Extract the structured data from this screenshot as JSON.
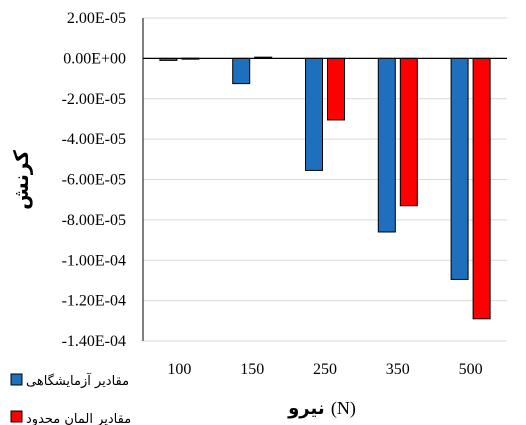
{
  "chart_data": {
    "type": "bar",
    "categories": [
      "100",
      "150",
      "250",
      "350",
      "500"
    ],
    "series": [
      {
        "name": "مقادیر آزمایشگاهی",
        "color": "#1f6fbf",
        "values": [
          -1e-06,
          -1.25e-05,
          -5.55e-05,
          -8.6e-05,
          -0.0001095
        ]
      },
      {
        "name": "مقادیر المان محدود",
        "color": "#ff0000",
        "values": [
          1e-07,
          6e-07,
          -3.05e-05,
          -7.3e-05,
          -0.000129
        ]
      }
    ],
    "ylim": [
      -0.00014,
      2e-05
    ],
    "yticks": [
      2e-05,
      0,
      -2e-05,
      -4e-05,
      -6e-05,
      -8e-05,
      -0.0001,
      -0.00012,
      -0.00014
    ],
    "ytick_labels": [
      "2.00E-05",
      "0.00E+00",
      "-2.00E-05",
      "-4.00E-05",
      "-6.00E-05",
      "-8.00E-05",
      "-1.00E-04",
      "-1.20E-04",
      "-1.40E-04"
    ],
    "xlabel": "نیرو",
    "xlabel_unit": "(N)",
    "ylabel": "کرنش",
    "grid": true,
    "legend_position": "bottom-left"
  }
}
